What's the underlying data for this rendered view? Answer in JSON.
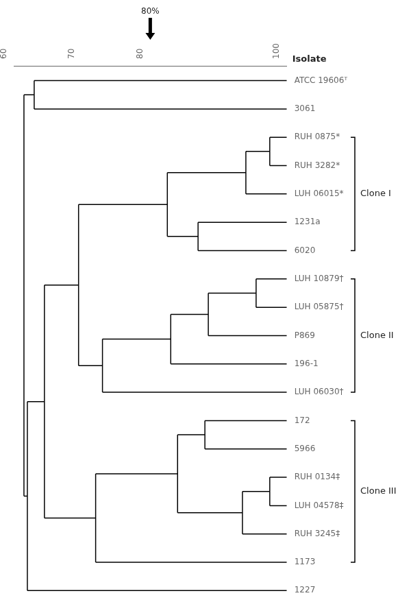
{
  "chart_data": {
    "type": "dendrogram",
    "ylabel": "Isolate",
    "categories": [
      "ATCC 19606ᵀ",
      "3061",
      "RUH 0875*",
      "RUH 3282*",
      "LUH 06015*",
      "1231a",
      "6020",
      "LUH 10879†",
      "LUH 05875†",
      "P869",
      "196-1",
      "LUH 06030†",
      "172",
      "5966",
      "RUH 0134‡",
      "LUH 04578‡",
      "RUH 3245‡",
      "1173",
      "1227"
    ],
    "tree": {
      "value": 61.5,
      "children": [
        {
          "value": 63.0,
          "children": [
            "ATCC 19606ᵀ",
            "3061"
          ]
        },
        {
          "value": 62.0,
          "children": [
            {
              "value": 64.5,
              "children": [
                {
                  "value": 69.5,
                  "children": [
                    {
                      "value": 82.5,
                      "children": [
                        {
                          "value": 94.0,
                          "children": [
                            {
                              "value": 97.5,
                              "children": [
                                "RUH 0875*",
                                "RUH 3282*"
                              ]
                            },
                            "LUH 06015*"
                          ]
                        },
                        {
                          "value": 87.0,
                          "children": [
                            "1231a",
                            "6020"
                          ]
                        }
                      ]
                    },
                    {
                      "value": 73.0,
                      "children": [
                        {
                          "value": 83.0,
                          "children": [
                            {
                              "value": 88.5,
                              "children": [
                                {
                                  "value": 95.5,
                                  "children": [
                                    "LUH 10879†",
                                    "LUH 05875†"
                                  ]
                                },
                                "P869"
                              ]
                            },
                            "196-1"
                          ]
                        },
                        "LUH 06030†"
                      ]
                    }
                  ]
                },
                {
                  "value": 72.0,
                  "children": [
                    {
                      "value": 84.0,
                      "children": [
                        {
                          "value": 88.0,
                          "children": [
                            "172",
                            "5966"
                          ]
                        },
                        {
                          "value": 93.5,
                          "children": [
                            {
                              "value": 97.5,
                              "children": [
                                "RUH 0134‡",
                                "LUH 04578‡"
                              ]
                            },
                            "RUH 3245‡"
                          ]
                        }
                      ]
                    },
                    "1173"
                  ]
                }
              ]
            },
            "1227"
          ]
        }
      ]
    },
    "color": "#000000",
    "xlim": [
      60,
      100
    ],
    "xticks": [
      60,
      70,
      80,
      100
    ],
    "grid": false,
    "annotations": [
      {
        "x": 80,
        "text": "80%"
      }
    ],
    "clone_groups": [
      {
        "name": "Clone I",
        "first": "RUH 0875*",
        "last": "6020"
      },
      {
        "name": "Clone II",
        "first": "LUH 10879†",
        "last": "LUH 06030†"
      },
      {
        "name": "Clone III",
        "first": "172",
        "last": "1173"
      }
    ]
  }
}
